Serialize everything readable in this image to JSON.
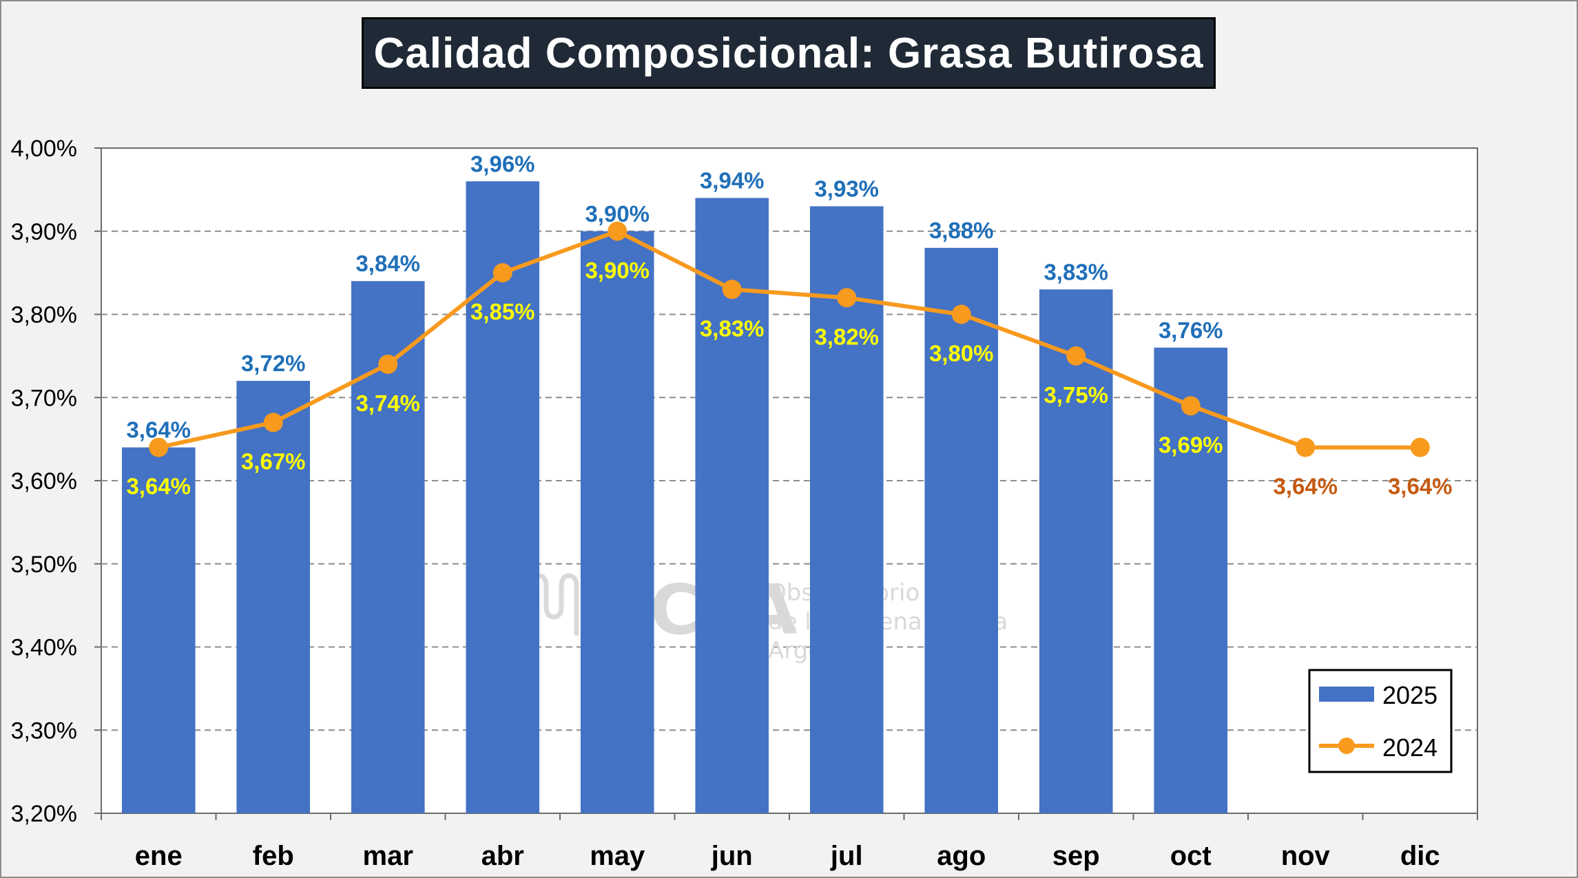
{
  "chart_data": {
    "type": "bar+line",
    "title": "Calidad Composicional: Grasa Butirosa",
    "categories": [
      "ene",
      "feb",
      "mar",
      "abr",
      "may",
      "jun",
      "jul",
      "ago",
      "sep",
      "oct",
      "nov",
      "dic"
    ],
    "yticks": [
      "3,20%",
      "3,30%",
      "3,40%",
      "3,50%",
      "3,60%",
      "3,70%",
      "3,80%",
      "3,90%",
      "4,00%"
    ],
    "ylim": [
      3.2,
      4.0
    ],
    "grid": true,
    "legend_position": "bottom-right",
    "series": [
      {
        "name": "2025",
        "type": "bar",
        "color": "#4472c4",
        "values": [
          3.64,
          3.72,
          3.84,
          3.96,
          3.9,
          3.94,
          3.93,
          3.88,
          3.83,
          3.76,
          null,
          null
        ],
        "labels": [
          "3,64%",
          "3,72%",
          "3,84%",
          "3,96%",
          "3,90%",
          "3,94%",
          "3,93%",
          "3,88%",
          "3,83%",
          "3,76%",
          null,
          null
        ]
      },
      {
        "name": "2024",
        "type": "line",
        "color": "#f79a1e",
        "values": [
          3.64,
          3.67,
          3.74,
          3.85,
          3.9,
          3.83,
          3.82,
          3.8,
          3.75,
          3.69,
          3.64,
          3.64
        ],
        "labels": [
          "3,64%",
          "3,67%",
          "3,74%",
          "3,85%",
          "3,90%",
          "3,83%",
          "3,82%",
          "3,80%",
          "3,75%",
          "3,69%",
          "3,64%",
          "3,64%"
        ]
      }
    ]
  },
  "watermark": {
    "brand": "OCLA",
    "line1": "Observatorio",
    "line2": "de la Cadena Láctea",
    "line3": "Argentina"
  }
}
